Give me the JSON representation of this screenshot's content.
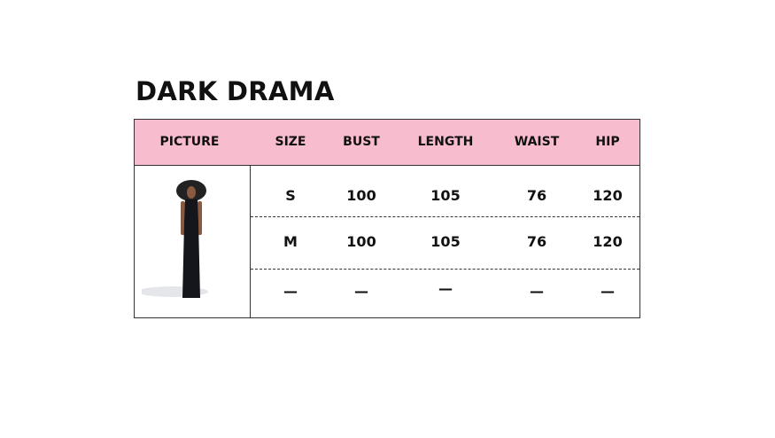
{
  "title": "DARK DRAMA",
  "headers": [
    "PICTURE",
    "SIZE",
    "BUST",
    "LENGTH",
    "WAIST",
    "HIP"
  ],
  "rows": [
    [
      "S",
      "100",
      "105",
      "76",
      "120"
    ],
    [
      "M",
      "100",
      "105",
      "76",
      "120"
    ],
    [
      "—",
      "—",
      "—",
      "—",
      "—"
    ]
  ],
  "picture": {
    "description_icon": "model-photo-icon"
  },
  "colors": {
    "header_bg": "#f8bccf",
    "border": "#333333"
  }
}
